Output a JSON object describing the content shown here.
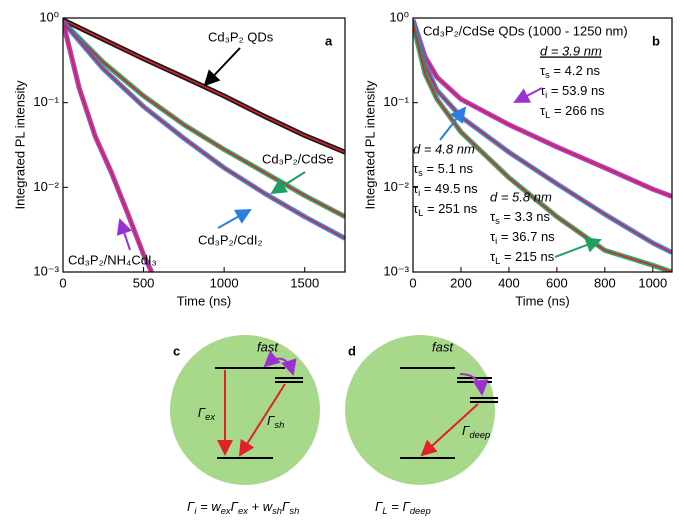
{
  "chart_data": [
    {
      "type": "line",
      "panel_label": "a",
      "xlabel": "Time (ns)",
      "ylabel": "Integrated PL intensity",
      "log_y": true,
      "fit_color": "#e0202a",
      "xlim": [
        0,
        1750
      ],
      "ylim": [
        0.001,
        1
      ],
      "xticks": [
        0,
        500,
        1000,
        1500
      ],
      "yticks": [
        {
          "value": 0.001,
          "label": "10⁻³"
        },
        {
          "value": 0.01,
          "label": "10⁻²"
        },
        {
          "value": 0.1,
          "label": "10⁻¹"
        },
        {
          "value": 1,
          "label": "10⁰"
        }
      ],
      "series": [
        {
          "name": "Cd₃P₂ QDs",
          "color": "#000000",
          "x": [
            0,
            250,
            500,
            750,
            1000,
            1250,
            1500,
            1750
          ],
          "values": [
            0.95,
            0.56,
            0.33,
            0.2,
            0.12,
            0.069,
            0.041,
            0.026
          ]
        },
        {
          "name": "Cd₃P₂/CdSe",
          "color": "#1fa060",
          "x": [
            0,
            250,
            500,
            750,
            1000,
            1250,
            1500,
            1750
          ],
          "values": [
            0.9,
            0.3,
            0.12,
            0.055,
            0.028,
            0.015,
            0.008,
            0.0045
          ]
        },
        {
          "name": "Cd₃P₂/CdI₂",
          "color": "#2a7ee0",
          "x": [
            0,
            250,
            500,
            750,
            1000,
            1250,
            1500,
            1750
          ],
          "values": [
            0.9,
            0.25,
            0.09,
            0.038,
            0.017,
            0.0085,
            0.0045,
            0.0025
          ]
        },
        {
          "name": "Cd₃P₂/NH₄CdI₃",
          "color": "#9b30d0",
          "x": [
            0,
            100,
            200,
            300,
            400,
            500,
            550
          ],
          "values": [
            0.9,
            0.15,
            0.04,
            0.015,
            0.005,
            0.0016,
            0.001
          ]
        }
      ]
    },
    {
      "type": "line",
      "panel_label": "b",
      "title": "Cd₃P₂/CdSe QDs (1000 - 1250 nm)",
      "xlabel": "Time (ns)",
      "ylabel": "Integrated PL intensity",
      "log_y": true,
      "fit_color": "#e0202a",
      "xlim": [
        0,
        1080
      ],
      "ylim": [
        0.001,
        1
      ],
      "xticks": [
        0,
        200,
        400,
        600,
        800,
        1000
      ],
      "yticks": [
        {
          "value": 0.001,
          "label": "10⁻³"
        },
        {
          "value": 0.01,
          "label": "10⁻²"
        },
        {
          "value": 0.1,
          "label": "10⁻¹"
        },
        {
          "value": 1,
          "label": "10⁰"
        }
      ],
      "series": [
        {
          "name": "d = 3.9 nm",
          "color": "#9b30d0",
          "params": [
            [
              "τ",
              {
                "sub": "s"
              },
              " = 4.2 ns"
            ],
            [
              "τ",
              {
                "sub": "i"
              },
              " = 53.9 ns"
            ],
            [
              "τ",
              {
                "sub": "L"
              },
              " = 266 ns"
            ]
          ],
          "x": [
            0,
            50,
            100,
            200,
            400,
            600,
            800,
            1000,
            1080
          ],
          "values": [
            0.95,
            0.35,
            0.2,
            0.11,
            0.055,
            0.03,
            0.017,
            0.0095,
            0.0078
          ]
        },
        {
          "name": "d = 4.8 nm",
          "color": "#2a7ee0",
          "params": [
            [
              "τ",
              {
                "sub": "s"
              },
              " = 5.1 ns"
            ],
            [
              "τ",
              {
                "sub": "i"
              },
              " = 49.5 ns"
            ],
            [
              "τ",
              {
                "sub": "L"
              },
              " = 251 ns"
            ]
          ],
          "x": [
            0,
            50,
            100,
            200,
            400,
            600,
            800,
            1000,
            1080
          ],
          "values": [
            0.9,
            0.28,
            0.14,
            0.068,
            0.026,
            0.011,
            0.0048,
            0.0022,
            0.0017
          ]
        },
        {
          "name": "d = 5.8 nm",
          "color": "#1fa060",
          "params": [
            [
              "τ",
              {
                "sub": "s"
              },
              " = 3.3 ns"
            ],
            [
              "τ",
              {
                "sub": "i"
              },
              " = 36.7 ns"
            ],
            [
              "τ",
              {
                "sub": "L"
              },
              " = 215 ns"
            ]
          ],
          "x": [
            0,
            50,
            100,
            200,
            400,
            600,
            800,
            1000,
            1080
          ],
          "values": [
            0.85,
            0.22,
            0.11,
            0.045,
            0.013,
            0.0045,
            0.0018,
            0.0012,
            0.001
          ]
        }
      ]
    }
  ],
  "diagrams": [
    {
      "label": "c",
      "fast": "fast",
      "rates": [
        [
          "Γ",
          {
            "sub": "ex"
          }
        ],
        [
          "Γ",
          {
            "sub": "sh"
          }
        ]
      ],
      "equation": [
        "Γ",
        {
          "sub": "i"
        },
        " = w",
        {
          "sub": "ex"
        },
        "Γ",
        {
          "sub": "ex"
        },
        " + w",
        {
          "sub": "sh"
        },
        "Γ",
        {
          "sub": "sh"
        }
      ]
    },
    {
      "label": "d",
      "fast": "fast",
      "rates": [
        [
          "Γ",
          {
            "sub": "deep"
          }
        ]
      ],
      "equation": [
        "Γ",
        {
          "sub": "L"
        },
        " = Γ",
        {
          "sub": "deep"
        }
      ]
    }
  ]
}
